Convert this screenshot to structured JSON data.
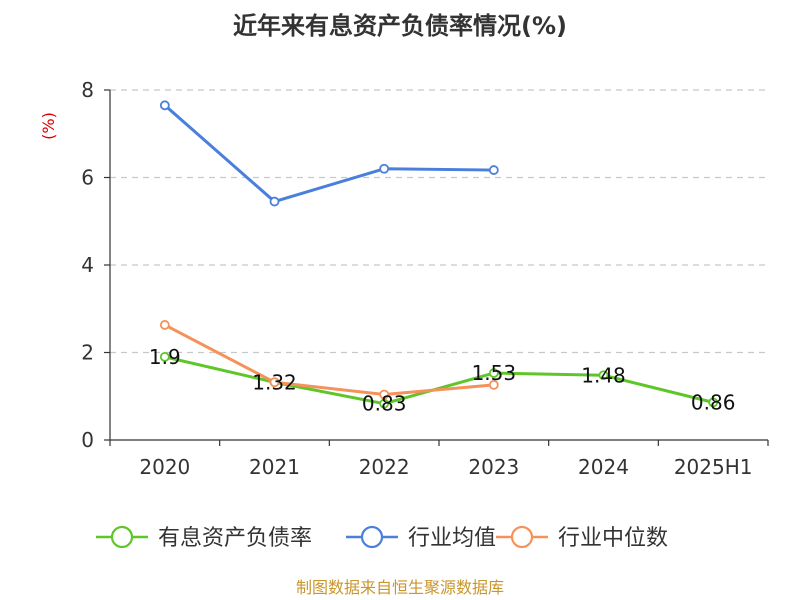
{
  "chart_data": {
    "type": "line",
    "title": "近年来有息资产负债率情况(%)",
    "ylabel": "(%)",
    "ylim": [
      0,
      8
    ],
    "yticks": [
      0,
      2,
      4,
      6,
      8
    ],
    "categories": [
      "2020",
      "2021",
      "2022",
      "2023",
      "2024",
      "2025H1"
    ],
    "grid": true,
    "legend_position": "bottom",
    "series": [
      {
        "name": "有息资产负债率",
        "color": "#5fc62a",
        "values": [
          1.9,
          1.32,
          0.83,
          1.53,
          1.48,
          0.86
        ],
        "labels": [
          "1.9",
          "1.32",
          "0.83",
          "1.53",
          "1.48",
          "0.86"
        ]
      },
      {
        "name": "行业均值",
        "color": "#4a7fdc",
        "values": [
          7.65,
          5.45,
          6.2,
          6.17,
          null,
          null
        ]
      },
      {
        "name": "行业中位数",
        "color": "#f5925a",
        "values": [
          2.63,
          1.32,
          1.04,
          1.26,
          null,
          null
        ]
      }
    ]
  },
  "footer": {
    "source": "制图数据来自恒生聚源数据库"
  }
}
